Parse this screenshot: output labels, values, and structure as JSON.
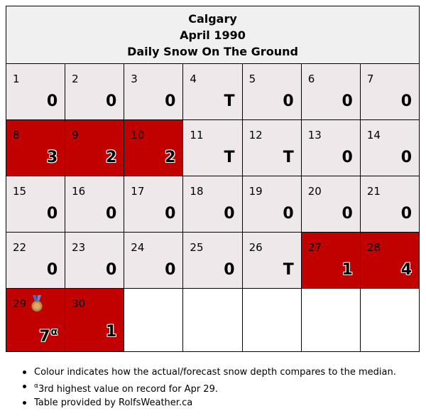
{
  "header": {
    "city": "Calgary",
    "month": "April 1990",
    "title": "Daily Snow On The Ground"
  },
  "colors": {
    "above_median": "#c10000",
    "median": "#eee8ea",
    "header_bg": "#f0f0f0"
  },
  "weeks": [
    [
      {
        "day": "1",
        "value": "0"
      },
      {
        "day": "2",
        "value": "0"
      },
      {
        "day": "3",
        "value": "0"
      },
      {
        "day": "4",
        "value": "T"
      },
      {
        "day": "5",
        "value": "0"
      },
      {
        "day": "6",
        "value": "0"
      },
      {
        "day": "7",
        "value": "0"
      }
    ],
    [
      {
        "day": "8",
        "value": "3",
        "highlight": true
      },
      {
        "day": "9",
        "value": "2",
        "highlight": true
      },
      {
        "day": "10",
        "value": "2",
        "highlight": true
      },
      {
        "day": "11",
        "value": "T"
      },
      {
        "day": "12",
        "value": "T"
      },
      {
        "day": "13",
        "value": "0"
      },
      {
        "day": "14",
        "value": "0"
      }
    ],
    [
      {
        "day": "15",
        "value": "0"
      },
      {
        "day": "16",
        "value": "0"
      },
      {
        "day": "17",
        "value": "0"
      },
      {
        "day": "18",
        "value": "0"
      },
      {
        "day": "19",
        "value": "0"
      },
      {
        "day": "20",
        "value": "0"
      },
      {
        "day": "21",
        "value": "0"
      }
    ],
    [
      {
        "day": "22",
        "value": "0"
      },
      {
        "day": "23",
        "value": "0"
      },
      {
        "day": "24",
        "value": "0"
      },
      {
        "day": "25",
        "value": "0"
      },
      {
        "day": "26",
        "value": "T"
      },
      {
        "day": "27",
        "value": "1",
        "highlight": true
      },
      {
        "day": "28",
        "value": "4",
        "highlight": true
      }
    ],
    [
      {
        "day": "29",
        "value": "7",
        "sup": "α",
        "highlight": true,
        "icon": "bronze-medal-icon"
      },
      {
        "day": "30",
        "value": "1",
        "highlight": true
      }
    ]
  ],
  "notes": {
    "colour_note": "Colour indicates how the actual/forecast snow depth compares to the median.",
    "record_sup": "α",
    "record_note": "3rd highest value on record for Apr 29.",
    "credit": "Table provided by RolfsWeather.ca"
  }
}
